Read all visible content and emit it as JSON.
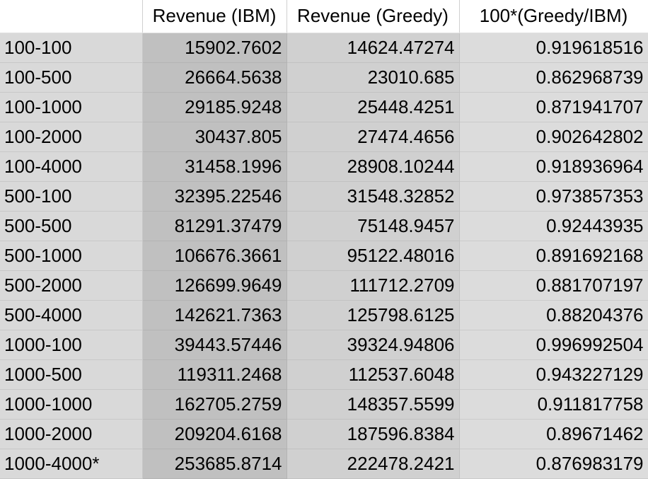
{
  "header": {
    "label": "",
    "ibm": "Revenue (IBM)",
    "greedy": "Revenue (Greedy)",
    "ratio": "100*(Greedy/IBM)"
  },
  "rows": [
    {
      "label": "100-100",
      "ibm": "15902.7602",
      "greedy": "14624.47274",
      "ratio": "0.919618516"
    },
    {
      "label": "100-500",
      "ibm": "26664.5638",
      "greedy": "23010.685",
      "ratio": "0.862968739"
    },
    {
      "label": "100-1000",
      "ibm": "29185.9248",
      "greedy": "25448.4251",
      "ratio": "0.871941707"
    },
    {
      "label": "100-2000",
      "ibm": "30437.805",
      "greedy": "27474.4656",
      "ratio": "0.902642802"
    },
    {
      "label": "100-4000",
      "ibm": "31458.1996",
      "greedy": "28908.10244",
      "ratio": "0.918936964"
    },
    {
      "label": "500-100",
      "ibm": "32395.22546",
      "greedy": "31548.32852",
      "ratio": "0.973857353"
    },
    {
      "label": "500-500",
      "ibm": "81291.37479",
      "greedy": "75148.9457",
      "ratio": "0.92443935"
    },
    {
      "label": "500-1000",
      "ibm": "106676.3661",
      "greedy": "95122.48016",
      "ratio": "0.891692168"
    },
    {
      "label": "500-2000",
      "ibm": "126699.9649",
      "greedy": "111712.2709",
      "ratio": "0.881707197"
    },
    {
      "label": "500-4000",
      "ibm": "142621.7363",
      "greedy": "125798.6125",
      "ratio": "0.88204376"
    },
    {
      "label": "1000-100",
      "ibm": "39443.57446",
      "greedy": "39324.94806",
      "ratio": "0.996992504"
    },
    {
      "label": "1000-500",
      "ibm": "119311.2468",
      "greedy": "112537.6048",
      "ratio": "0.943227129"
    },
    {
      "label": "1000-1000",
      "ibm": "162705.2759",
      "greedy": "148357.5599",
      "ratio": "0.911817758"
    },
    {
      "label": "1000-2000",
      "ibm": "209204.6168",
      "greedy": "187596.8384",
      "ratio": "0.89671462"
    },
    {
      "label": "1000-4000*",
      "ibm": "253685.8714",
      "greedy": "222478.2421",
      "ratio": "0.876983179"
    }
  ]
}
